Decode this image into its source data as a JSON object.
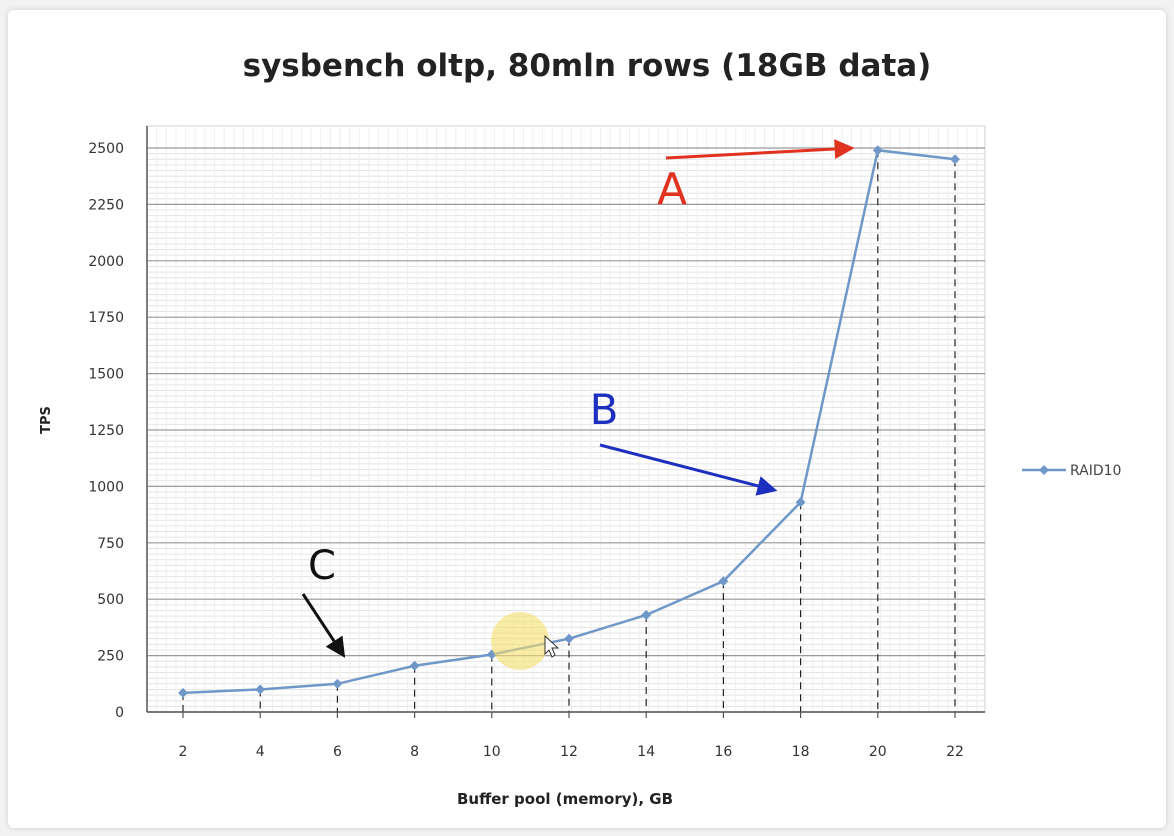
{
  "chart_data": {
    "type": "line",
    "title": "sysbench oltp, 80mln rows (18GB data)",
    "xlabel": "Buffer pool (memory), GB",
    "ylabel": "TPS",
    "x": [
      2,
      4,
      6,
      8,
      10,
      12,
      14,
      16,
      18,
      20,
      22
    ],
    "series": [
      {
        "name": "RAID10",
        "color": "#6f97c8",
        "values": [
          85,
          100,
          125,
          205,
          255,
          325,
          430,
          580,
          930,
          2490,
          2450
        ]
      }
    ],
    "ylim": [
      0,
      2500
    ],
    "yticks": [
      0,
      250,
      500,
      750,
      1000,
      1250,
      1500,
      1750,
      2000,
      2250,
      2500
    ],
    "xticks": [
      2,
      4,
      6,
      8,
      10,
      12,
      14,
      16,
      18,
      20,
      22
    ],
    "grid": true,
    "legend_position": "right",
    "annotations": [
      {
        "label": "A",
        "color": "#e0321f",
        "points_to_x": 19.4,
        "points_to_y": 2500
      },
      {
        "label": "B",
        "color": "#1c2fbf",
        "points_to_x": 17.4,
        "points_to_y": 980
      },
      {
        "label": "C",
        "color": "#111111",
        "points_to_x": 6.2,
        "points_to_y": 240
      }
    ]
  }
}
